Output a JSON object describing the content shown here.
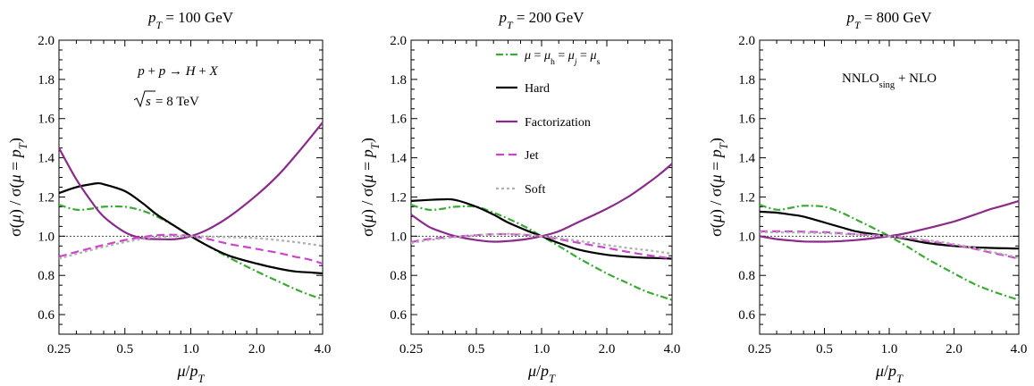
{
  "chart_data": [
    {
      "type": "line",
      "title": "p_T = 100 GeV",
      "xlabel": "μ/p_T",
      "ylabel": "σ(μ) / σ(μ = p_T)",
      "xscale": "log",
      "xlim": [
        0.25,
        4.0
      ],
      "ylim": [
        0.5,
        2.0
      ],
      "xticks": [
        "0.25",
        "0.5",
        "1.0",
        "2.0",
        "4.0"
      ],
      "yticks": [
        "0.6",
        "0.8",
        "1.0",
        "1.2",
        "1.4",
        "1.6",
        "1.8",
        "2.0"
      ],
      "reference_line": 1.0,
      "annotations": [
        "p + p → H + X",
        "√s = 8 TeV"
      ],
      "series": [
        {
          "name": "μ = μh = μj = μs",
          "color": "#3aaa35",
          "dash": "dashdot",
          "x": [
            0.25,
            0.3,
            0.35,
            0.4,
            0.5,
            0.6,
            0.7,
            0.85,
            1.0,
            1.2,
            1.5,
            2.0,
            2.5,
            3.0,
            3.5,
            4.0
          ],
          "y": [
            1.16,
            1.135,
            1.14,
            1.15,
            1.15,
            1.13,
            1.1,
            1.05,
            1.0,
            0.95,
            0.89,
            0.82,
            0.77,
            0.73,
            0.7,
            0.68
          ]
        },
        {
          "name": "Hard",
          "color": "#000000",
          "dash": "solid",
          "x": [
            0.25,
            0.3,
            0.35,
            0.375,
            0.4,
            0.5,
            0.6,
            0.7,
            0.85,
            1.0,
            1.2,
            1.5,
            2.0,
            2.5,
            3.0,
            3.5,
            4.0
          ],
          "y": [
            1.22,
            1.25,
            1.265,
            1.27,
            1.265,
            1.23,
            1.17,
            1.11,
            1.05,
            1.0,
            0.95,
            0.9,
            0.86,
            0.835,
            0.82,
            0.815,
            0.81
          ]
        },
        {
          "name": "Factorization",
          "color": "#8a2a8a",
          "dash": "solid",
          "x": [
            0.25,
            0.3,
            0.35,
            0.4,
            0.5,
            0.6,
            0.7,
            0.85,
            1.0,
            1.2,
            1.5,
            2.0,
            2.5,
            3.0,
            3.5,
            4.0
          ],
          "y": [
            1.45,
            1.29,
            1.18,
            1.1,
            1.02,
            0.99,
            0.985,
            0.985,
            1.0,
            1.035,
            1.1,
            1.21,
            1.31,
            1.41,
            1.5,
            1.58
          ]
        },
        {
          "name": "Jet",
          "color": "#cc44cc",
          "dash": "dashed",
          "x": [
            0.25,
            0.3,
            0.4,
            0.5,
            0.6,
            0.7,
            0.85,
            1.0,
            1.2,
            1.5,
            2.0,
            2.5,
            3.0,
            3.5,
            4.0
          ],
          "y": [
            0.895,
            0.92,
            0.955,
            0.98,
            0.995,
            1.005,
            1.007,
            1.0,
            0.985,
            0.96,
            0.935,
            0.915,
            0.895,
            0.88,
            0.86
          ]
        },
        {
          "name": "Soft",
          "color": "#b0b0b0",
          "dash": "dotted",
          "x": [
            0.25,
            0.3,
            0.4,
            0.5,
            0.6,
            0.7,
            0.85,
            1.0,
            1.2,
            1.5,
            2.0,
            2.5,
            3.0,
            3.5,
            4.0
          ],
          "y": [
            0.885,
            0.91,
            0.945,
            0.97,
            0.985,
            0.995,
            1.0,
            1.0,
            0.998,
            0.995,
            0.99,
            0.98,
            0.97,
            0.96,
            0.95
          ]
        }
      ]
    },
    {
      "type": "line",
      "title": "p_T = 200 GeV",
      "xlabel": "μ/p_T",
      "ylabel": "σ(μ) / σ(μ = p_T)",
      "xscale": "log",
      "xlim": [
        0.25,
        4.0
      ],
      "ylim": [
        0.5,
        2.0
      ],
      "xticks": [
        "0.25",
        "0.5",
        "1.0",
        "2.0",
        "4.0"
      ],
      "yticks": [
        "0.6",
        "0.8",
        "1.0",
        "1.2",
        "1.4",
        "1.6",
        "1.8",
        "2.0"
      ],
      "reference_line": 1.0,
      "legend": {
        "placement": "top-right",
        "entries": [
          "μ = μh = μj = μs",
          "Hard",
          "Factorization",
          "Jet",
          "Soft"
        ]
      },
      "series": [
        {
          "name": "μ = μh = μj = μs",
          "color": "#3aaa35",
          "dash": "dashdot",
          "x": [
            0.25,
            0.3,
            0.35,
            0.4,
            0.5,
            0.6,
            0.7,
            0.85,
            1.0,
            1.2,
            1.5,
            2.0,
            2.5,
            3.0,
            3.5,
            4.0
          ],
          "y": [
            1.16,
            1.135,
            1.14,
            1.15,
            1.15,
            1.12,
            1.09,
            1.045,
            1.0,
            0.95,
            0.885,
            0.81,
            0.76,
            0.72,
            0.695,
            0.675
          ]
        },
        {
          "name": "Hard",
          "color": "#000000",
          "dash": "solid",
          "x": [
            0.25,
            0.3,
            0.35,
            0.4,
            0.5,
            0.6,
            0.7,
            0.85,
            1.0,
            1.2,
            1.5,
            2.0,
            2.5,
            3.0,
            3.5,
            4.0
          ],
          "y": [
            1.18,
            1.185,
            1.188,
            1.185,
            1.15,
            1.11,
            1.07,
            1.03,
            1.0,
            0.965,
            0.93,
            0.905,
            0.895,
            0.89,
            0.888,
            0.885
          ]
        },
        {
          "name": "Factorization",
          "color": "#8a2a8a",
          "dash": "solid",
          "x": [
            0.25,
            0.3,
            0.35,
            0.4,
            0.5,
            0.6,
            0.7,
            0.85,
            1.0,
            1.2,
            1.5,
            2.0,
            2.5,
            3.0,
            3.5,
            4.0
          ],
          "y": [
            1.11,
            1.05,
            1.02,
            1.0,
            0.98,
            0.972,
            0.975,
            0.985,
            1.0,
            1.025,
            1.075,
            1.14,
            1.2,
            1.26,
            1.315,
            1.37
          ]
        },
        {
          "name": "Jet",
          "color": "#cc44cc",
          "dash": "dashed",
          "x": [
            0.25,
            0.3,
            0.4,
            0.5,
            0.6,
            0.7,
            0.85,
            1.0,
            1.2,
            1.5,
            2.0,
            2.5,
            3.0,
            3.5,
            4.0
          ],
          "y": [
            0.97,
            0.985,
            0.998,
            1.005,
            1.01,
            1.01,
            1.006,
            1.0,
            0.985,
            0.965,
            0.94,
            0.92,
            0.905,
            0.895,
            0.885
          ]
        },
        {
          "name": "Soft",
          "color": "#b0b0b0",
          "dash": "dotted",
          "x": [
            0.25,
            0.3,
            0.4,
            0.5,
            0.6,
            0.7,
            0.85,
            1.0,
            1.2,
            1.5,
            2.0,
            2.5,
            3.0,
            3.5,
            4.0
          ],
          "y": [
            0.965,
            0.98,
            0.995,
            1.005,
            1.01,
            1.012,
            1.008,
            1.0,
            0.99,
            0.975,
            0.955,
            0.94,
            0.93,
            0.92,
            0.91
          ]
        }
      ]
    },
    {
      "type": "line",
      "title": "p_T = 800 GeV",
      "xlabel": "μ/p_T",
      "ylabel": "σ(μ) / σ(μ = p_T)",
      "xscale": "log",
      "xlim": [
        0.25,
        4.0
      ],
      "ylim": [
        0.5,
        2.0
      ],
      "xticks": [
        "0.25",
        "0.5",
        "1.0",
        "2.0",
        "4.0"
      ],
      "yticks": [
        "0.6",
        "0.8",
        "1.0",
        "1.2",
        "1.4",
        "1.6",
        "1.8",
        "2.0"
      ],
      "reference_line": 1.0,
      "annotations": [
        "NNLO_sing + NLO"
      ],
      "series": [
        {
          "name": "μ = μh = μj = μs",
          "color": "#3aaa35",
          "dash": "dashdot",
          "x": [
            0.25,
            0.3,
            0.35,
            0.4,
            0.5,
            0.6,
            0.7,
            0.85,
            1.0,
            1.2,
            1.5,
            2.0,
            2.5,
            3.0,
            3.5,
            4.0
          ],
          "y": [
            1.16,
            1.135,
            1.145,
            1.155,
            1.15,
            1.12,
            1.085,
            1.04,
            1.0,
            0.95,
            0.885,
            0.81,
            0.755,
            0.72,
            0.695,
            0.675
          ]
        },
        {
          "name": "Hard",
          "color": "#000000",
          "dash": "solid",
          "x": [
            0.25,
            0.3,
            0.35,
            0.4,
            0.5,
            0.6,
            0.7,
            0.85,
            1.0,
            1.2,
            1.5,
            2.0,
            2.5,
            3.0,
            3.5,
            4.0
          ],
          "y": [
            1.125,
            1.12,
            1.11,
            1.1,
            1.07,
            1.045,
            1.025,
            1.01,
            1.0,
            0.985,
            0.965,
            0.95,
            0.943,
            0.94,
            0.938,
            0.937
          ]
        },
        {
          "name": "Factorization",
          "color": "#8a2a8a",
          "dash": "solid",
          "x": [
            0.25,
            0.3,
            0.35,
            0.4,
            0.5,
            0.6,
            0.7,
            0.85,
            1.0,
            1.2,
            1.5,
            2.0,
            2.5,
            3.0,
            3.5,
            4.0
          ],
          "y": [
            1.0,
            0.985,
            0.978,
            0.973,
            0.972,
            0.975,
            0.98,
            0.99,
            1.0,
            1.015,
            1.04,
            1.075,
            1.11,
            1.14,
            1.16,
            1.18
          ]
        },
        {
          "name": "Jet",
          "color": "#cc44cc",
          "dash": "dashed",
          "x": [
            0.25,
            0.3,
            0.4,
            0.5,
            0.6,
            0.7,
            0.85,
            1.0,
            1.2,
            1.5,
            2.0,
            2.5,
            3.0,
            3.5,
            4.0
          ],
          "y": [
            1.025,
            1.025,
            1.023,
            1.02,
            1.015,
            1.01,
            1.005,
            1.0,
            0.99,
            0.975,
            0.955,
            0.935,
            0.915,
            0.9,
            0.885
          ]
        },
        {
          "name": "Soft",
          "color": "#b0b0b0",
          "dash": "dotted",
          "x": [
            0.25,
            0.3,
            0.4,
            0.5,
            0.6,
            0.7,
            0.85,
            1.0,
            1.2,
            1.5,
            2.0,
            2.5,
            3.0,
            3.5,
            4.0
          ],
          "y": [
            1.02,
            1.02,
            1.018,
            1.015,
            1.012,
            1.008,
            1.004,
            1.0,
            0.993,
            0.98,
            0.96,
            0.94,
            0.92,
            0.905,
            0.89
          ]
        }
      ]
    }
  ]
}
